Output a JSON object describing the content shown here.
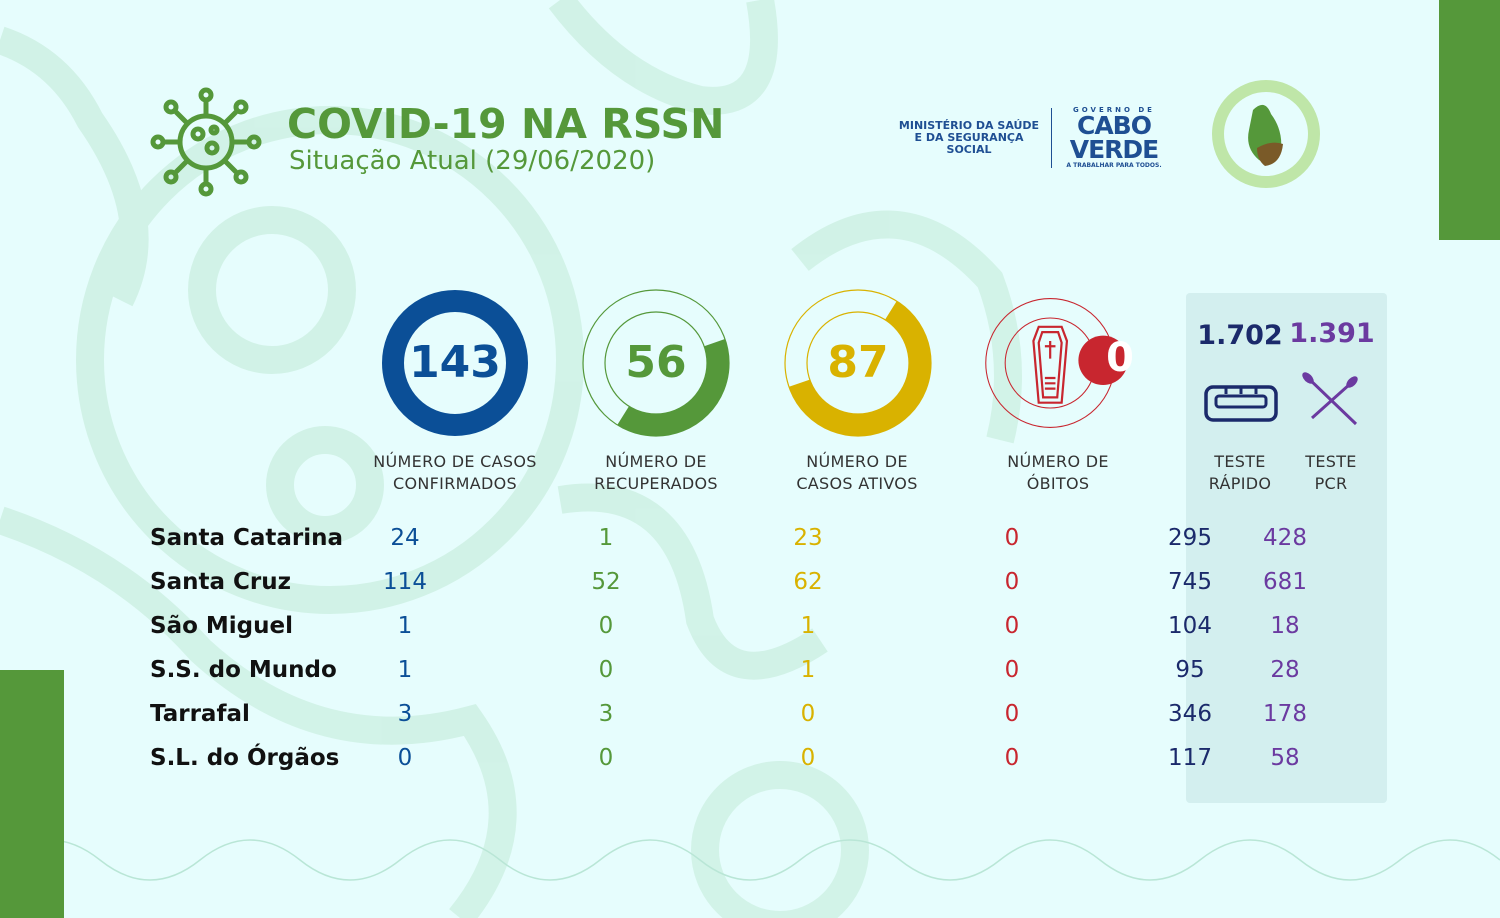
{
  "header": {
    "title": "COVID-19 NA RSSN",
    "subtitle": "Situação Atual (29/06/2020)"
  },
  "logos": {
    "ministry": "MINISTÉRIO DA SAÚDE E DA SEGURANÇA SOCIAL",
    "cv_top": "GOVERNO DE",
    "cv_line1": "CABO",
    "cv_line2": "VERDE",
    "cv_tag": "A TRABALHAR PARA TODOS.",
    "region_seal": "Região Sanitária Santiago Norte"
  },
  "colors": {
    "confirmed": "#0b4f97",
    "recovered": "#55983a",
    "active": "#d9b200",
    "deaths": "#c8262f",
    "rapid": "#1b2a6b",
    "pcr": "#6b3aa0"
  },
  "summary": {
    "confirmed": {
      "value": "143",
      "label1": "NÚMERO DE CASOS",
      "label2": "CONFIRMADOS"
    },
    "recovered": {
      "value": "56",
      "label1": "NÚMERO DE",
      "label2": "RECUPERADOS",
      "fraction": 0.392
    },
    "active": {
      "value": "87",
      "label1": "NÚMERO DE",
      "label2": "CASOS ATIVOS",
      "fraction": 0.608
    },
    "deaths": {
      "value": "0",
      "label1": "NÚMERO DE",
      "label2": "ÓBITOS"
    },
    "rapid": {
      "value": "1.702",
      "label1": "TESTE",
      "label2": "RÁPIDO"
    },
    "pcr": {
      "value": "1.391",
      "label1": "TESTE",
      "label2": "PCR"
    }
  },
  "rows": [
    {
      "name": "Santa Catarina",
      "confirmed": "24",
      "recovered": "1",
      "active": "23",
      "deaths": "0",
      "rapid": "295",
      "pcr": "428"
    },
    {
      "name": "Santa Cruz",
      "confirmed": "114",
      "recovered": "52",
      "active": "62",
      "deaths": "0",
      "rapid": "745",
      "pcr": "681"
    },
    {
      "name": "São Miguel",
      "confirmed": "1",
      "recovered": "0",
      "active": "1",
      "deaths": "0",
      "rapid": "104",
      "pcr": "18"
    },
    {
      "name": "S.S. do Mundo",
      "confirmed": "1",
      "recovered": "0",
      "active": "1",
      "deaths": "0",
      "rapid": "95",
      "pcr": "28"
    },
    {
      "name": "Tarrafal",
      "confirmed": "3",
      "recovered": "3",
      "active": "0",
      "deaths": "0",
      "rapid": "346",
      "pcr": "178"
    },
    {
      "name": "S.L. do Órgãos",
      "confirmed": "0",
      "recovered": "0",
      "active": "0",
      "deaths": "0",
      "rapid": "117",
      "pcr": "58"
    }
  ]
}
